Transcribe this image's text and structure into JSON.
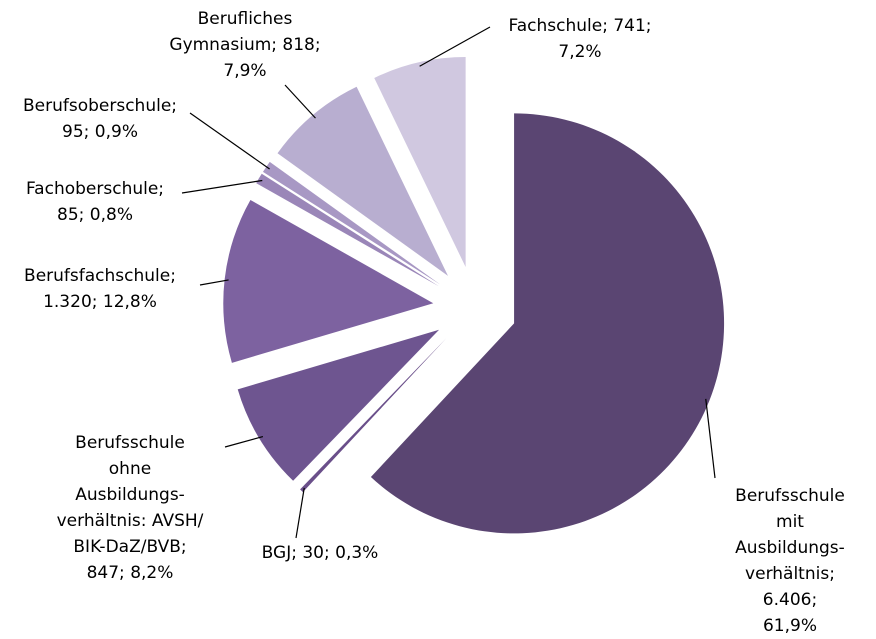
{
  "chart_data": {
    "type": "pie",
    "labels": [
      "Berufsschule mit\nAusbildungs-\nverhältnis; 6.406;\n61,9%",
      "BGJ; 30; 0,3%",
      "Berufsschule\nohne\nAusbildungs-\nverhältnis: AVSH/\nBIK-DaZ/BVB;\n847; 8,2%",
      "Berufsfachschule;\n1.320; 12,8%",
      "Fachoberschule;\n85; 0,8%",
      "Berufsoberschule;\n95; 0,9%",
      "Berufliches\nGymnasium; 818;\n7,9%",
      "Fachschule; 741;\n7,2%"
    ],
    "values": [
      6406,
      30,
      847,
      1320,
      85,
      95,
      818,
      741
    ],
    "colors": [
      "#5a4572",
      "#6a4f8a",
      "#6e5590",
      "#7d62a0",
      "#9a86b8",
      "#a898c4",
      "#b8aed0",
      "#d0c8e0"
    ]
  }
}
